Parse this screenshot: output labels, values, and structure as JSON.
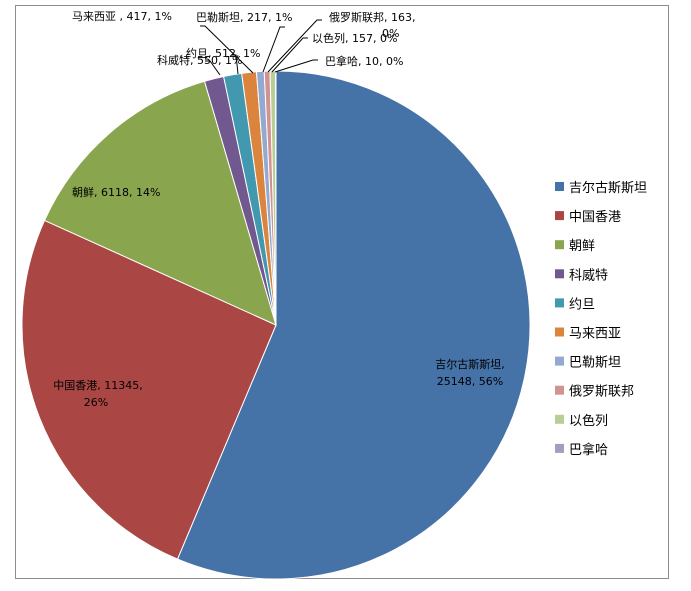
{
  "chart_data": {
    "type": "pie",
    "title": "",
    "legend_position": "right",
    "slices": [
      {
        "label": "吉尔古斯斯坦",
        "value": 25148,
        "percent": "56%",
        "color": "#4572A7",
        "data_label": [
          "吉尔古斯斯坦,",
          "25148, 56%"
        ]
      },
      {
        "label": "中国香港",
        "value": 11345,
        "percent": "26%",
        "color": "#AA4643",
        "data_label": [
          "中国香港, 11345,",
          "26%"
        ]
      },
      {
        "label": "朝鲜",
        "value": 6118,
        "percent": "14%",
        "color": "#89A54E",
        "data_label": [
          "朝鲜, 6118, 14%"
        ]
      },
      {
        "label": "科威特",
        "value": 550,
        "percent": "1%",
        "color": "#71588F",
        "data_label": [
          "科威特, 550, 1%"
        ]
      },
      {
        "label": "约旦",
        "value": 512,
        "percent": "1%",
        "color": "#4198AF",
        "data_label": [
          "约旦, 512, 1%"
        ]
      },
      {
        "label": "马来西亚",
        "value": 417,
        "percent": "1%",
        "color": "#DB843D",
        "data_label": [
          "马来西亚 , 417, 1%"
        ]
      },
      {
        "label": "巴勒斯坦",
        "value": 217,
        "percent": "1%",
        "color": "#93A9CF",
        "data_label": [
          "巴勒斯坦, 217, 1%"
        ]
      },
      {
        "label": "俄罗斯联邦",
        "value": 163,
        "percent": "0%",
        "color": "#D19392",
        "data_label": [
          "俄罗斯联邦, 163,",
          "0%"
        ]
      },
      {
        "label": "以色列",
        "value": 157,
        "percent": "0%",
        "color": "#B9CD96",
        "data_label": [
          "以色列, 157, 0%"
        ]
      },
      {
        "label": "巴拿哈",
        "value": 10,
        "percent": "0%",
        "color": "#A99BBD",
        "data_label": [
          "巴拿哈, 10, 0%"
        ]
      }
    ]
  }
}
